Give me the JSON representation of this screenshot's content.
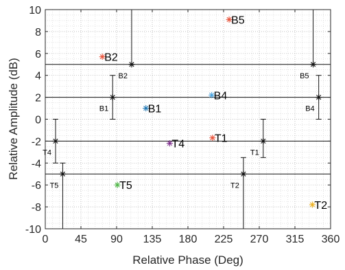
{
  "chart_data": {
    "type": "scatter",
    "xlabel": "Relative Phase (Deg)",
    "ylabel": "Relative Amplitude (dB)",
    "xlim": [
      0,
      360
    ],
    "ylim": [
      -10,
      10
    ],
    "xticks": [
      0,
      45,
      90,
      135,
      180,
      225,
      270,
      315,
      360
    ],
    "yticks": [
      -10,
      -8,
      -6,
      -4,
      -2,
      0,
      2,
      4,
      6,
      8,
      10
    ],
    "grid": "major and minor, dotted",
    "box": true,
    "points": [
      {
        "label": "B5",
        "x": 232,
        "y": 9.1,
        "color": "#e8533b"
      },
      {
        "label": "B2",
        "x": 72,
        "y": 5.7,
        "color": "#e8533b"
      },
      {
        "label": "B4",
        "x": 210,
        "y": 2.2,
        "color": "#4aa3df"
      },
      {
        "label": "B1",
        "x": 127,
        "y": 1.0,
        "color": "#1f77b4"
      },
      {
        "label": "T1",
        "x": 211,
        "y": -1.7,
        "color": "#e8533b"
      },
      {
        "label": "T4",
        "x": 157,
        "y": -2.2,
        "color": "#7e2f8e"
      },
      {
        "label": "T5",
        "x": 91,
        "y": -6.0,
        "color": "#4bb543"
      },
      {
        "label": "T2",
        "x": 337,
        "y": -7.8,
        "color": "#edb120"
      }
    ],
    "reference_lines": [
      {
        "y": 5,
        "markers": [
          {
            "label": "B2",
            "x": 109,
            "bar": [
              5,
              10
            ]
          },
          {
            "label": "B5",
            "x": 338,
            "bar": [
              5,
              10
            ]
          }
        ]
      },
      {
        "y": 2,
        "markers": [
          {
            "label": "B1",
            "x": 85,
            "bar": [
              0,
              4
            ]
          },
          {
            "label": "B4",
            "x": 345,
            "bar": [
              0,
              4
            ]
          }
        ]
      },
      {
        "y": -2,
        "markers": [
          {
            "label": "T4",
            "x": 13,
            "bar": [
              -4,
              0
            ]
          },
          {
            "label": "T1",
            "x": 275,
            "bar": [
              -3.5,
              0
            ]
          }
        ]
      },
      {
        "y": -5,
        "markers": [
          {
            "label": "T5",
            "x": 22,
            "bar": [
              -10,
              -4
            ]
          },
          {
            "label": "T2",
            "x": 250,
            "bar": [
              -10,
              -3.5
            ]
          }
        ]
      }
    ]
  }
}
